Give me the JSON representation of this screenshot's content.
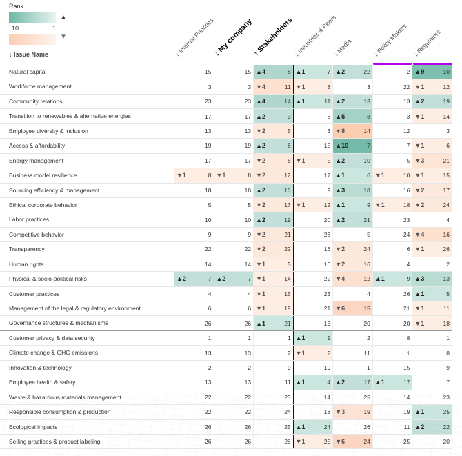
{
  "legend": {
    "title": "Rank",
    "min_label": "10",
    "max_label": "1",
    "up_icon": "triangle-up",
    "down_icon": "triangle-down"
  },
  "issue_header": "↓ Issue Name",
  "columns": [
    {
      "label": "↓ Internal Priorities",
      "bold": false
    },
    {
      "label": "↓ My company",
      "bold": true
    },
    {
      "label": "↑ Stakeholders",
      "bold": true
    },
    {
      "label": "↓ Industries & Peers",
      "bold": false
    },
    {
      "label": "↓ Media",
      "bold": false
    },
    {
      "label": "↓ Policy Makers",
      "bold": false
    },
    {
      "label": "↓ Regulators",
      "bold": false
    }
  ],
  "colors": {
    "up": "#40a088",
    "down": "#f5a070",
    "highlight": "#b100f0",
    "sort_active": "#40c8c0"
  },
  "rows": [
    {
      "name": "Natural capital",
      "cells": [
        [
          0,
          15
        ],
        [
          0,
          15
        ],
        [
          4,
          8
        ],
        [
          1,
          7
        ],
        [
          2,
          22
        ],
        [
          0,
          2
        ],
        [
          9,
          10
        ]
      ]
    },
    {
      "name": "Workforce management",
      "cells": [
        [
          0,
          3
        ],
        [
          0,
          3
        ],
        [
          -4,
          11
        ],
        [
          -1,
          8
        ],
        [
          0,
          3
        ],
        [
          0,
          22
        ],
        [
          -1,
          12
        ]
      ]
    },
    {
      "name": "Community relations",
      "cells": [
        [
          0,
          23
        ],
        [
          0,
          23
        ],
        [
          4,
          14
        ],
        [
          1,
          11
        ],
        [
          2,
          13
        ],
        [
          0,
          13
        ],
        [
          2,
          19
        ]
      ]
    },
    {
      "name": "Transition to renewables & alternative energies",
      "cells": [
        [
          0,
          17
        ],
        [
          0,
          17
        ],
        [
          2,
          3
        ],
        [
          0,
          6
        ],
        [
          5,
          8
        ],
        [
          0,
          3
        ],
        [
          -1,
          14
        ]
      ]
    },
    {
      "name": "Employee diversity & inclusion",
      "cells": [
        [
          0,
          13
        ],
        [
          0,
          13
        ],
        [
          -2,
          5
        ],
        [
          0,
          3
        ],
        [
          -8,
          14
        ],
        [
          0,
          12
        ],
        [
          0,
          3
        ]
      ]
    },
    {
      "name": "Access & affordability",
      "cells": [
        [
          0,
          19
        ],
        [
          0,
          19
        ],
        [
          2,
          6
        ],
        [
          0,
          15
        ],
        [
          10,
          7
        ],
        [
          0,
          7
        ],
        [
          -1,
          6
        ]
      ]
    },
    {
      "name": "Energy management",
      "cells": [
        [
          0,
          17
        ],
        [
          0,
          17
        ],
        [
          -2,
          8
        ],
        [
          -1,
          5
        ],
        [
          2,
          10
        ],
        [
          0,
          5
        ],
        [
          -3,
          21
        ]
      ]
    },
    {
      "name": "Business model resilience",
      "cells": [
        [
          -1,
          8
        ],
        [
          -1,
          8
        ],
        [
          -2,
          12
        ],
        [
          0,
          17
        ],
        [
          1,
          6
        ],
        [
          -1,
          10
        ],
        [
          -1,
          15
        ]
      ]
    },
    {
      "name": "Sourcing efficiency & management",
      "cells": [
        [
          0,
          18
        ],
        [
          0,
          18
        ],
        [
          2,
          16
        ],
        [
          0,
          9
        ],
        [
          3,
          18
        ],
        [
          0,
          16
        ],
        [
          -2,
          17
        ]
      ]
    },
    {
      "name": "Ethical corporate behavior",
      "cells": [
        [
          0,
          5
        ],
        [
          0,
          5
        ],
        [
          -2,
          17
        ],
        [
          -1,
          12
        ],
        [
          1,
          9
        ],
        [
          -1,
          18
        ],
        [
          -2,
          24
        ]
      ]
    },
    {
      "name": "Labor practices",
      "cells": [
        [
          0,
          10
        ],
        [
          0,
          10
        ],
        [
          2,
          19
        ],
        [
          0,
          20
        ],
        [
          2,
          21
        ],
        [
          0,
          23
        ],
        [
          0,
          4
        ]
      ]
    },
    {
      "name": "Competitive behavior",
      "cells": [
        [
          0,
          9
        ],
        [
          0,
          9
        ],
        [
          -2,
          21
        ],
        [
          0,
          26
        ],
        [
          0,
          5
        ],
        [
          0,
          24
        ],
        [
          -4,
          16
        ]
      ]
    },
    {
      "name": "Transparency",
      "cells": [
        [
          0,
          22
        ],
        [
          0,
          22
        ],
        [
          -2,
          22
        ],
        [
          0,
          16
        ],
        [
          -2,
          24
        ],
        [
          0,
          6
        ],
        [
          -1,
          26
        ]
      ]
    },
    {
      "name": "Human rights",
      "cells": [
        [
          0,
          14
        ],
        [
          0,
          14
        ],
        [
          -1,
          5
        ],
        [
          0,
          10
        ],
        [
          -2,
          16
        ],
        [
          0,
          4
        ],
        [
          0,
          2
        ]
      ]
    },
    {
      "name": "Physical & socio-political risks",
      "cells": [
        [
          2,
          7
        ],
        [
          2,
          7
        ],
        [
          -1,
          14
        ],
        [
          0,
          22
        ],
        [
          -4,
          12
        ],
        [
          1,
          9
        ],
        [
          3,
          13
        ]
      ]
    },
    {
      "name": "Customer practices",
      "cells": [
        [
          0,
          4
        ],
        [
          0,
          4
        ],
        [
          -1,
          15
        ],
        [
          0,
          23
        ],
        [
          0,
          4
        ],
        [
          0,
          26
        ],
        [
          1,
          5
        ]
      ]
    },
    {
      "name": "Management of the legal & regulatory environment",
      "cells": [
        [
          0,
          6
        ],
        [
          0,
          6
        ],
        [
          -1,
          19
        ],
        [
          0,
          21
        ],
        [
          -6,
          15
        ],
        [
          0,
          21
        ],
        [
          -1,
          11
        ]
      ]
    },
    {
      "name": "Governance structures & mechanisms",
      "cells": [
        [
          0,
          26
        ],
        [
          0,
          26
        ],
        [
          1,
          21
        ],
        [
          0,
          13
        ],
        [
          0,
          20
        ],
        [
          0,
          20
        ],
        [
          -1,
          18
        ]
      ]
    },
    {
      "name": "Customer privacy & data security",
      "cells": [
        [
          0,
          1
        ],
        [
          0,
          1
        ],
        [
          0,
          1
        ],
        [
          1,
          1
        ],
        [
          0,
          2
        ],
        [
          0,
          8
        ],
        [
          0,
          1
        ]
      ]
    },
    {
      "name": "Climate change & GHG emissions",
      "cells": [
        [
          0,
          13
        ],
        [
          0,
          13
        ],
        [
          0,
          2
        ],
        [
          -1,
          2
        ],
        [
          0,
          11
        ],
        [
          0,
          1
        ],
        [
          0,
          8
        ]
      ]
    },
    {
      "name": "Innovation & technology",
      "cells": [
        [
          0,
          2
        ],
        [
          0,
          2
        ],
        [
          0,
          9
        ],
        [
          0,
          19
        ],
        [
          0,
          1
        ],
        [
          0,
          15
        ],
        [
          0,
          9
        ]
      ]
    },
    {
      "name": "Employee health & safety",
      "cells": [
        [
          0,
          13
        ],
        [
          0,
          13
        ],
        [
          0,
          11
        ],
        [
          1,
          4
        ],
        [
          2,
          17
        ],
        [
          1,
          17
        ],
        [
          0,
          7
        ]
      ]
    },
    {
      "name": "Waste & hazardous materials management",
      "cells": [
        [
          0,
          22
        ],
        [
          0,
          22
        ],
        [
          0,
          23
        ],
        [
          0,
          14
        ],
        [
          0,
          25
        ],
        [
          0,
          14
        ],
        [
          0,
          23
        ]
      ]
    },
    {
      "name": "Responsible consumption & production",
      "cells": [
        [
          0,
          22
        ],
        [
          0,
          22
        ],
        [
          0,
          24
        ],
        [
          0,
          18
        ],
        [
          -3,
          19
        ],
        [
          0,
          19
        ],
        [
          1,
          25
        ]
      ]
    },
    {
      "name": "Ecological impacts",
      "cells": [
        [
          0,
          26
        ],
        [
          0,
          26
        ],
        [
          0,
          25
        ],
        [
          1,
          24
        ],
        [
          0,
          26
        ],
        [
          0,
          11
        ],
        [
          2,
          22
        ]
      ]
    },
    {
      "name": "Selling practices & product labeling",
      "cells": [
        [
          0,
          26
        ],
        [
          0,
          26
        ],
        [
          0,
          26
        ],
        [
          -1,
          25
        ],
        [
          -6,
          24
        ],
        [
          0,
          25
        ],
        [
          0,
          20
        ]
      ]
    }
  ]
}
